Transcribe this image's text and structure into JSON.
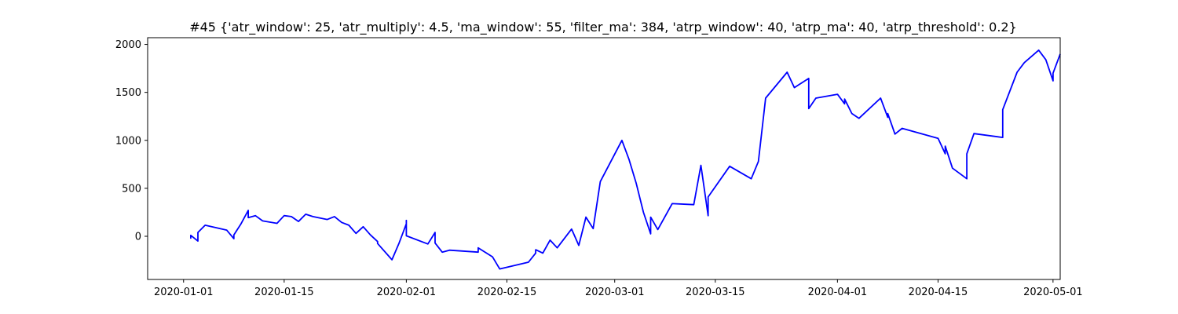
{
  "chart_data": {
    "type": "line",
    "title": "#45 {'atr_window': 25, 'atr_multiply': 4.5, 'ma_window': 55, 'filter_ma': 384, 'atrp_window': 40, 'atrp_ma': 40, 'atrp_threshold': 0.2}",
    "xlabel": "",
    "ylabel": "",
    "x_axis": "date",
    "xlim": [
      "2019-12-27",
      "2020-05-02"
    ],
    "ylim": [
      -450,
      2070
    ],
    "grid": false,
    "line_color": "#0000ff",
    "x_ticks": [
      "2020-01-01",
      "2020-01-15",
      "2020-02-01",
      "2020-02-15",
      "2020-03-01",
      "2020-03-15",
      "2020-04-01",
      "2020-04-15",
      "2020-05-01"
    ],
    "y_ticks": [
      0,
      500,
      1000,
      1500,
      2000
    ],
    "series": [
      {
        "points": [
          [
            "2020-01-02",
            0
          ],
          [
            "2020-01-02",
            -20
          ],
          [
            "2020-01-02",
            10
          ],
          [
            "2020-01-03",
            -50
          ],
          [
            "2020-01-03",
            40
          ],
          [
            "2020-01-04",
            115
          ],
          [
            "2020-01-07",
            65
          ],
          [
            "2020-01-08",
            -25
          ],
          [
            "2020-01-08",
            15
          ],
          [
            "2020-01-09",
            130
          ],
          [
            "2020-01-10",
            270
          ],
          [
            "2020-01-10",
            195
          ],
          [
            "2020-01-11",
            215
          ],
          [
            "2020-01-12",
            160
          ],
          [
            "2020-01-14",
            135
          ],
          [
            "2020-01-15",
            215
          ],
          [
            "2020-01-16",
            205
          ],
          [
            "2020-01-17",
            155
          ],
          [
            "2020-01-18",
            230
          ],
          [
            "2020-01-19",
            205
          ],
          [
            "2020-01-21",
            175
          ],
          [
            "2020-01-22",
            205
          ],
          [
            "2020-01-23",
            145
          ],
          [
            "2020-01-24",
            115
          ],
          [
            "2020-01-25",
            30
          ],
          [
            "2020-01-26",
            100
          ],
          [
            "2020-01-27",
            15
          ],
          [
            "2020-01-28",
            -55
          ],
          [
            "2020-01-28",
            -75
          ],
          [
            "2020-01-30",
            -245
          ],
          [
            "2020-01-31",
            -70
          ],
          [
            "2020-02-01",
            130
          ],
          [
            "2020-02-01",
            165
          ],
          [
            "2020-02-01",
            5
          ],
          [
            "2020-02-04",
            -80
          ],
          [
            "2020-02-05",
            40
          ],
          [
            "2020-02-05",
            -70
          ],
          [
            "2020-02-06",
            -165
          ],
          [
            "2020-02-07",
            -145
          ],
          [
            "2020-02-11",
            -165
          ],
          [
            "2020-02-11",
            -120
          ],
          [
            "2020-02-13",
            -215
          ],
          [
            "2020-02-14",
            -340
          ],
          [
            "2020-02-18",
            -270
          ],
          [
            "2020-02-19",
            -175
          ],
          [
            "2020-02-19",
            -140
          ],
          [
            "2020-02-20",
            -175
          ],
          [
            "2020-02-21",
            -40
          ],
          [
            "2020-02-22",
            -120
          ],
          [
            "2020-02-24",
            75
          ],
          [
            "2020-02-25",
            -95
          ],
          [
            "2020-02-26",
            200
          ],
          [
            "2020-02-27",
            80
          ],
          [
            "2020-02-28",
            570
          ],
          [
            "2020-03-02",
            1000
          ],
          [
            "2020-03-03",
            800
          ],
          [
            "2020-03-04",
            550
          ],
          [
            "2020-03-05",
            250
          ],
          [
            "2020-03-06",
            25
          ],
          [
            "2020-03-06",
            200
          ],
          [
            "2020-03-07",
            70
          ],
          [
            "2020-03-09",
            340
          ],
          [
            "2020-03-12",
            330
          ],
          [
            "2020-03-13",
            740
          ],
          [
            "2020-03-14",
            215
          ],
          [
            "2020-03-14",
            410
          ],
          [
            "2020-03-17",
            730
          ],
          [
            "2020-03-20",
            600
          ],
          [
            "2020-03-21",
            780
          ],
          [
            "2020-03-22",
            1440
          ],
          [
            "2020-03-25",
            1710
          ],
          [
            "2020-03-26",
            1550
          ],
          [
            "2020-03-28",
            1645
          ],
          [
            "2020-03-28",
            1330
          ],
          [
            "2020-03-29",
            1440
          ],
          [
            "2020-04-01",
            1480
          ],
          [
            "2020-04-02",
            1380
          ],
          [
            "2020-04-02",
            1430
          ],
          [
            "2020-04-03",
            1280
          ],
          [
            "2020-04-04",
            1230
          ],
          [
            "2020-04-07",
            1440
          ],
          [
            "2020-04-08",
            1240
          ],
          [
            "2020-04-08",
            1280
          ],
          [
            "2020-04-09",
            1065
          ],
          [
            "2020-04-10",
            1125
          ],
          [
            "2020-04-15",
            1020
          ],
          [
            "2020-04-16",
            860
          ],
          [
            "2020-04-16",
            940
          ],
          [
            "2020-04-17",
            710
          ],
          [
            "2020-04-19",
            600
          ],
          [
            "2020-04-19",
            860
          ],
          [
            "2020-04-20",
            1070
          ],
          [
            "2020-04-24",
            1030
          ],
          [
            "2020-04-24",
            1320
          ],
          [
            "2020-04-26",
            1710
          ],
          [
            "2020-04-27",
            1810
          ],
          [
            "2020-04-29",
            1940
          ],
          [
            "2020-04-30",
            1840
          ],
          [
            "2020-05-01",
            1620
          ],
          [
            "2020-05-01",
            1700
          ],
          [
            "2020-05-02",
            1900
          ]
        ]
      }
    ]
  }
}
